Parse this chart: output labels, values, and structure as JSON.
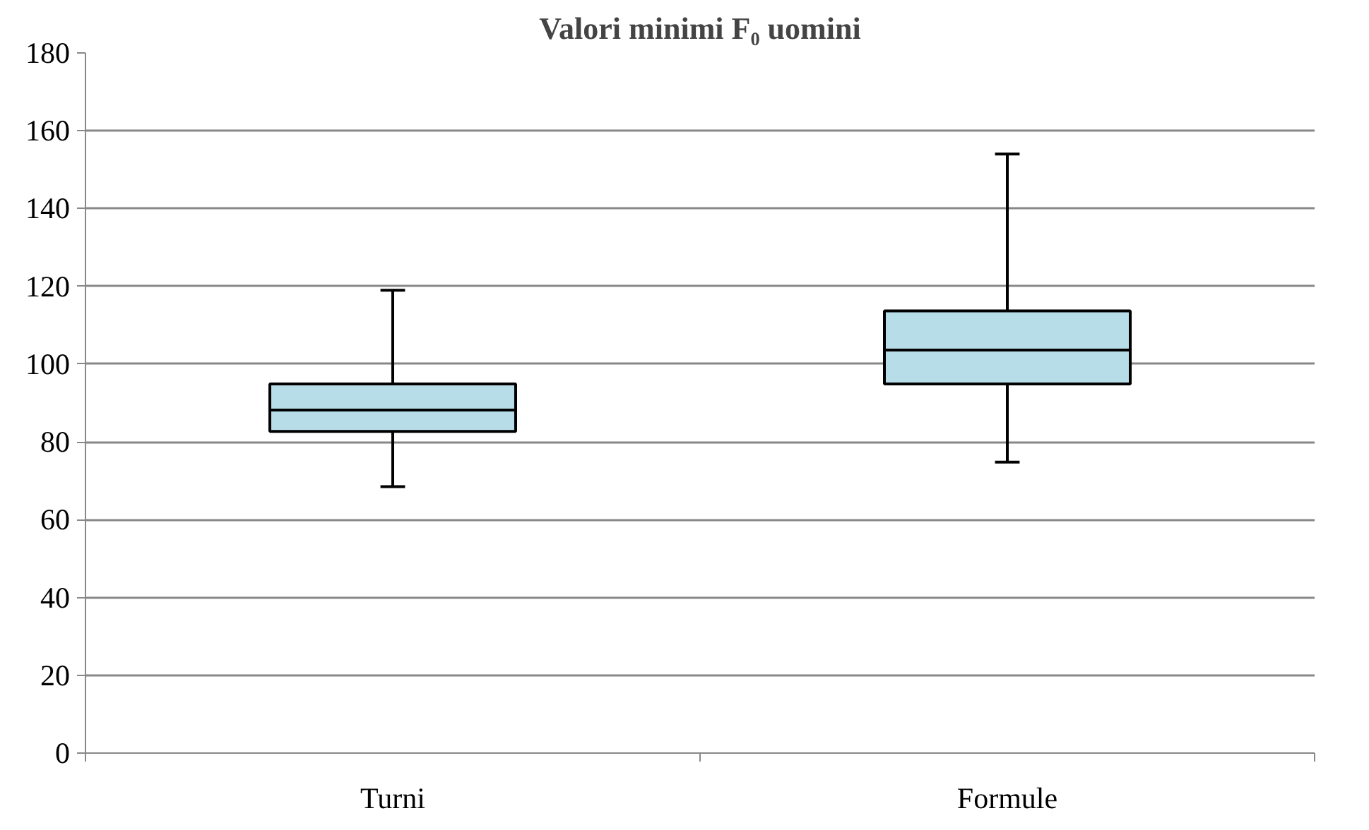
{
  "chart_data": {
    "type": "box",
    "title": "Valori minimi F₀ uomini",
    "categories": [
      "Turni",
      "Formule"
    ],
    "boxes": [
      {
        "low": 68.5,
        "q1": 82.7,
        "median": 88.2,
        "q3": 94.9,
        "high": 119
      },
      {
        "low": 74.8,
        "q1": 94.9,
        "median": 103.6,
        "q3": 113.7,
        "high": 154
      }
    ],
    "color": "#b7dde8",
    "ylim": [
      0,
      180
    ],
    "yticks": [
      0,
      20,
      40,
      60,
      80,
      100,
      120,
      140,
      160,
      180
    ],
    "grid": "y"
  }
}
